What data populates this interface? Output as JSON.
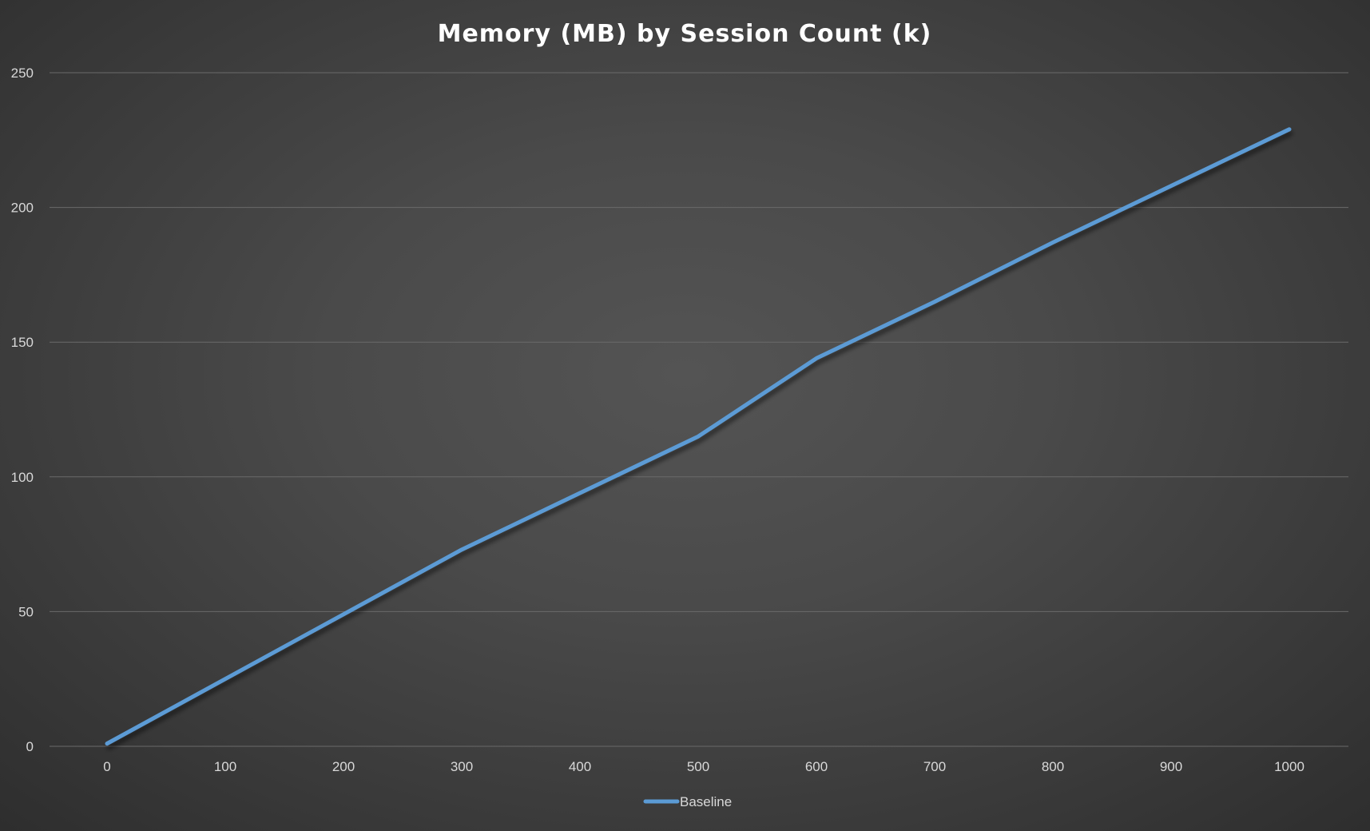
{
  "chart_data": {
    "type": "line",
    "title": "Memory (MB) by Session Count (k)",
    "xlabel": "",
    "ylabel": "",
    "x": [
      0,
      100,
      200,
      300,
      400,
      500,
      600,
      700,
      800,
      900,
      1000
    ],
    "x_ticks": [
      "0",
      "100",
      "200",
      "300",
      "400",
      "500",
      "600",
      "700",
      "800",
      "900",
      "1000"
    ],
    "y_ticks": [
      "0",
      "50",
      "100",
      "150",
      "200",
      "250"
    ],
    "ylim": [
      0,
      250
    ],
    "xlim": [
      0,
      1000
    ],
    "grid": true,
    "legend_position": "bottom",
    "series": [
      {
        "name": "Baseline",
        "color": "#5b9bd5",
        "values": [
          1,
          25,
          49,
          73,
          94,
          115,
          144,
          165,
          187,
          208,
          229
        ]
      }
    ]
  }
}
